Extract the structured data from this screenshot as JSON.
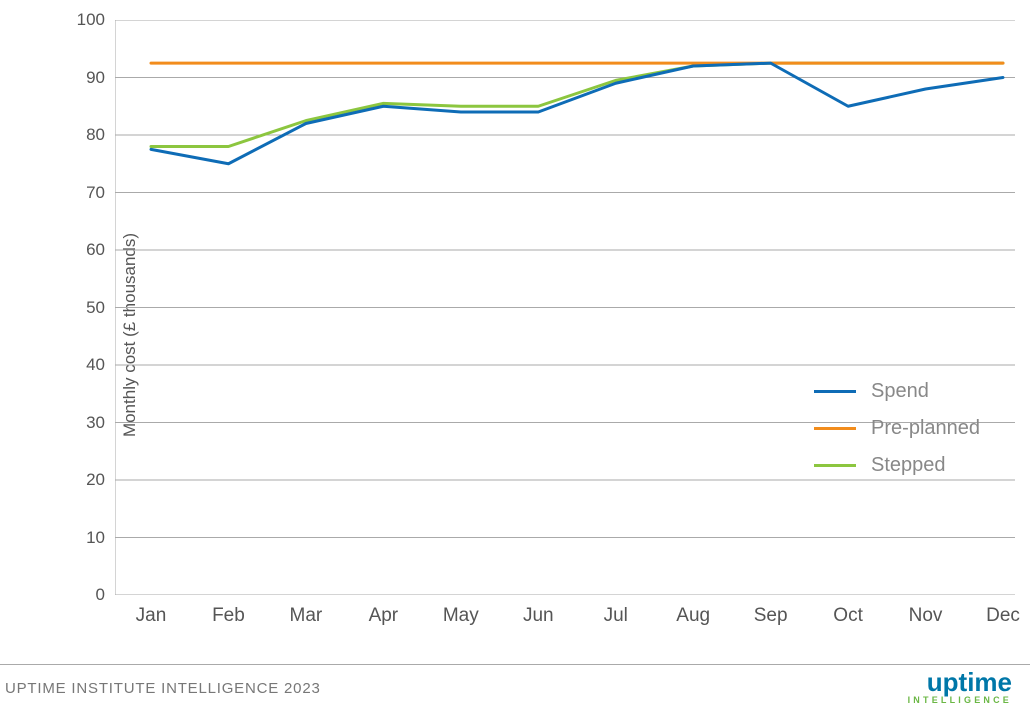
{
  "chart": {
    "type": "line",
    "ylabel": "Monthly cost (£ thousands)",
    "ylabel_fontsize": 17,
    "xlabel_fontsize": 19,
    "background_color": "#ffffff",
    "grid_color": "#aaaaaa",
    "axis_color": "#aaaaaa",
    "text_color": "#555555",
    "xlim": [
      0,
      11
    ],
    "ylim": [
      0,
      100
    ],
    "ytick_step": 10,
    "yticks": [
      0,
      10,
      20,
      30,
      40,
      50,
      60,
      70,
      80,
      90,
      100
    ],
    "xticks": [
      "Jan",
      "Feb",
      "Mar",
      "Apr",
      "May",
      "Jun",
      "Jul",
      "Aug",
      "Sep",
      "Oct",
      "Nov",
      "Dec"
    ],
    "line_width": 3,
    "series": [
      {
        "name": "Spend",
        "color": "#0e6cb6",
        "values": [
          77.5,
          75,
          82,
          85,
          84,
          84,
          89,
          92,
          92.5,
          85,
          88,
          90
        ]
      },
      {
        "name": "Pre-planned",
        "color": "#f28c1c",
        "values": [
          92.5,
          92.5,
          92.5,
          92.5,
          92.5,
          92.5,
          92.5,
          92.5,
          92.5,
          92.5,
          92.5,
          92.5
        ]
      },
      {
        "name": "Stepped",
        "color": "#8cc63f",
        "values": [
          78,
          78,
          82.5,
          85.5,
          85,
          85,
          89.5,
          92,
          92.5,
          92.5,
          92.5,
          92.5
        ]
      }
    ],
    "legend": {
      "position": "right-center",
      "label_color": "#888888",
      "label_fontsize": 20
    }
  },
  "footer": {
    "text": "UPTIME INSTITUTE INTELLIGENCE 2023",
    "text_color": "#777777",
    "logo_main": "uptime",
    "logo_main_color": "#0077a8",
    "logo_sub": "INTELLIGENCE",
    "logo_sub_color": "#6bb745"
  }
}
